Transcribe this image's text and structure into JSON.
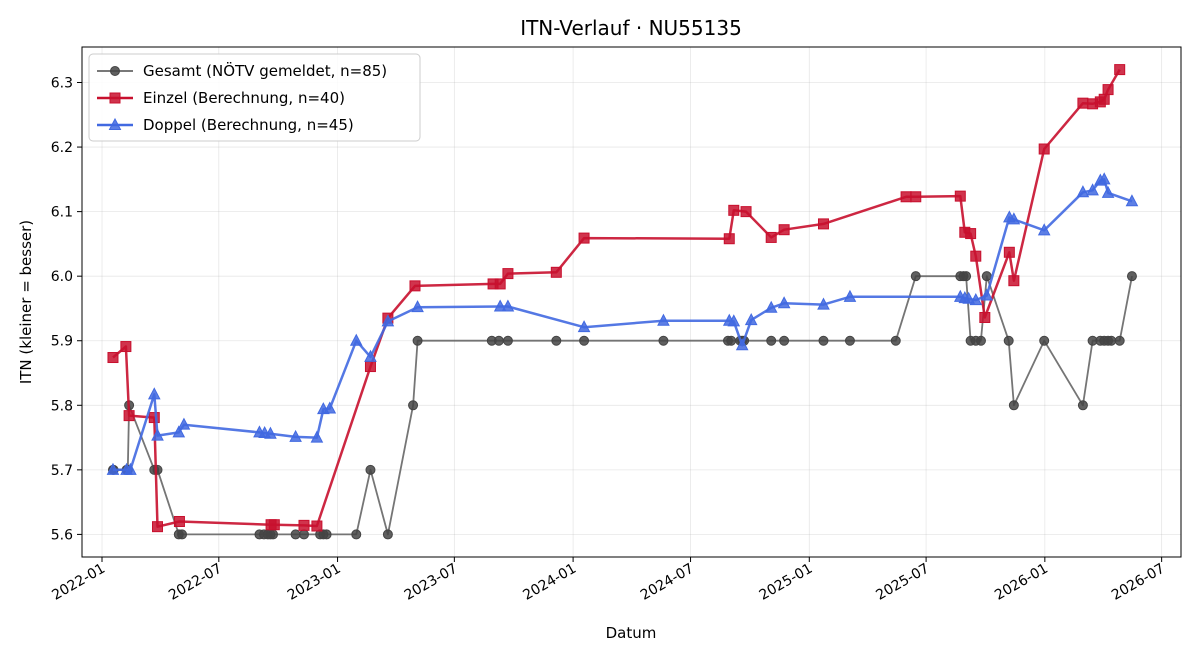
{
  "chart_data": {
    "type": "line",
    "title": "ITN-Verlauf · NU55135",
    "xlabel": "Datum",
    "ylabel": "ITN  (kleiner = besser)",
    "xlim": [
      "2021-12-01",
      "2026-07-31"
    ],
    "ylim": [
      5.565,
      6.355
    ],
    "x_ticks": [
      "2022-01",
      "2022-07",
      "2023-01",
      "2023-07",
      "2024-01",
      "2024-07",
      "2025-01",
      "2025-07",
      "2026-01",
      "2026-07"
    ],
    "y_ticks": [
      5.6,
      5.7,
      5.8,
      5.9,
      6.0,
      6.1,
      6.2,
      6.3
    ],
    "grid": true,
    "legend_position": "top-left",
    "series": [
      {
        "name": "Gesamt (NÖTV gemeldet, n=85)",
        "color": "#666666",
        "marker": "circle",
        "points": [
          [
            "2022-01-18",
            5.7
          ],
          [
            "2022-01-19",
            5.7
          ],
          [
            "2022-02-08",
            5.7
          ],
          [
            "2022-02-10",
            5.7
          ],
          [
            "2022-02-12",
            5.8
          ],
          [
            "2022-03-23",
            5.7
          ],
          [
            "2022-03-28",
            5.7
          ],
          [
            "2022-04-30",
            5.6
          ],
          [
            "2022-05-05",
            5.6
          ],
          [
            "2022-09-02",
            5.6
          ],
          [
            "2022-09-09",
            5.6
          ],
          [
            "2022-09-15",
            5.6
          ],
          [
            "2022-09-19",
            5.6
          ],
          [
            "2022-09-23",
            5.6
          ],
          [
            "2022-10-28",
            5.6
          ],
          [
            "2022-11-10",
            5.6
          ],
          [
            "2022-12-05",
            5.6
          ],
          [
            "2022-12-10",
            5.6
          ],
          [
            "2022-12-15",
            5.6
          ],
          [
            "2023-01-30",
            5.6
          ],
          [
            "2023-02-21",
            5.7
          ],
          [
            "2023-03-20",
            5.6
          ],
          [
            "2023-04-28",
            5.8
          ],
          [
            "2023-05-05",
            5.9
          ],
          [
            "2023-08-28",
            5.9
          ],
          [
            "2023-09-08",
            5.9
          ],
          [
            "2023-09-22",
            5.9
          ],
          [
            "2023-12-06",
            5.9
          ],
          [
            "2024-01-18",
            5.9
          ],
          [
            "2024-05-20",
            5.9
          ],
          [
            "2024-08-28",
            5.9
          ],
          [
            "2024-09-02",
            5.9
          ],
          [
            "2024-09-16",
            5.9
          ],
          [
            "2024-09-19",
            5.9
          ],
          [
            "2024-09-22",
            5.9
          ],
          [
            "2024-11-03",
            5.9
          ],
          [
            "2024-11-23",
            5.9
          ],
          [
            "2025-01-23",
            5.9
          ],
          [
            "2025-03-05",
            5.9
          ],
          [
            "2025-05-15",
            5.9
          ],
          [
            "2025-06-15",
            6.0
          ],
          [
            "2025-08-23",
            6.0
          ],
          [
            "2025-08-28",
            6.0
          ],
          [
            "2025-09-01",
            6.0
          ],
          [
            "2025-09-08",
            5.9
          ],
          [
            "2025-09-16",
            5.9
          ],
          [
            "2025-09-24",
            5.9
          ],
          [
            "2025-10-03",
            6.0
          ],
          [
            "2025-11-06",
            5.9
          ],
          [
            "2025-11-14",
            5.8
          ],
          [
            "2025-12-31",
            5.9
          ],
          [
            "2026-03-01",
            5.8
          ],
          [
            "2026-03-16",
            5.9
          ],
          [
            "2026-03-28",
            5.9
          ],
          [
            "2026-04-03",
            5.9
          ],
          [
            "2026-04-09",
            5.9
          ],
          [
            "2026-04-14",
            5.9
          ],
          [
            "2026-04-27",
            5.9
          ],
          [
            "2026-05-16",
            6.0
          ]
        ]
      },
      {
        "name": "Einzel (Berechnung, n=40)",
        "color": "#c8102e",
        "marker": "square",
        "points": [
          [
            "2022-01-18",
            5.874
          ],
          [
            "2022-02-07",
            5.891
          ],
          [
            "2022-02-12",
            5.784
          ],
          [
            "2022-03-23",
            5.781
          ],
          [
            "2022-03-28",
            5.612
          ],
          [
            "2022-05-01",
            5.62
          ],
          [
            "2022-09-20",
            5.615
          ],
          [
            "2022-09-25",
            5.615
          ],
          [
            "2022-11-10",
            5.614
          ],
          [
            "2022-11-30",
            5.613
          ],
          [
            "2023-02-21",
            5.86
          ],
          [
            "2023-03-20",
            5.935
          ],
          [
            "2023-05-01",
            5.985
          ],
          [
            "2023-08-30",
            5.988
          ],
          [
            "2023-09-10",
            5.988
          ],
          [
            "2023-09-22",
            6.004
          ],
          [
            "2023-12-06",
            6.006
          ],
          [
            "2024-01-18",
            6.059
          ],
          [
            "2024-08-30",
            6.058
          ],
          [
            "2024-09-06",
            6.102
          ],
          [
            "2024-09-25",
            6.1
          ],
          [
            "2024-11-03",
            6.06
          ],
          [
            "2024-11-23",
            6.072
          ],
          [
            "2025-01-23",
            6.081
          ],
          [
            "2025-05-31",
            6.123
          ],
          [
            "2025-06-15",
            6.123
          ],
          [
            "2025-08-23",
            6.124
          ],
          [
            "2025-08-30",
            6.068
          ],
          [
            "2025-09-08",
            6.066
          ],
          [
            "2025-09-16",
            6.031
          ],
          [
            "2025-09-30",
            5.936
          ],
          [
            "2025-11-07",
            6.037
          ],
          [
            "2025-11-14",
            5.993
          ],
          [
            "2025-12-31",
            6.197
          ],
          [
            "2026-03-01",
            6.268
          ],
          [
            "2026-03-16",
            6.267
          ],
          [
            "2026-03-28",
            6.27
          ],
          [
            "2026-04-03",
            6.274
          ],
          [
            "2026-04-09",
            6.289
          ],
          [
            "2026-04-27",
            6.32
          ]
        ]
      },
      {
        "name": "Doppel (Berechnung, n=45)",
        "color": "#4169e1",
        "marker": "triangle",
        "points": [
          [
            "2022-01-18",
            5.7
          ],
          [
            "2022-02-08",
            5.7
          ],
          [
            "2022-02-14",
            5.7
          ],
          [
            "2022-03-23",
            5.817
          ],
          [
            "2022-03-28",
            5.753
          ],
          [
            "2022-04-30",
            5.758
          ],
          [
            "2022-05-08",
            5.77
          ],
          [
            "2022-09-02",
            5.758
          ],
          [
            "2022-09-10",
            5.757
          ],
          [
            "2022-09-19",
            5.756
          ],
          [
            "2022-10-28",
            5.751
          ],
          [
            "2022-11-30",
            5.75
          ],
          [
            "2022-12-10",
            5.794
          ],
          [
            "2022-12-20",
            5.795
          ],
          [
            "2023-01-30",
            5.9
          ],
          [
            "2023-02-21",
            5.875
          ],
          [
            "2023-03-20",
            5.93
          ],
          [
            "2023-05-05",
            5.952
          ],
          [
            "2023-09-10",
            5.953
          ],
          [
            "2023-09-22",
            5.953
          ],
          [
            "2024-01-18",
            5.921
          ],
          [
            "2024-05-20",
            5.931
          ],
          [
            "2024-08-30",
            5.931
          ],
          [
            "2024-09-06",
            5.93
          ],
          [
            "2024-09-19",
            5.893
          ],
          [
            "2024-10-03",
            5.932
          ],
          [
            "2024-11-03",
            5.951
          ],
          [
            "2024-11-23",
            5.958
          ],
          [
            "2025-01-23",
            5.956
          ],
          [
            "2025-03-05",
            5.968
          ],
          [
            "2025-08-23",
            5.968
          ],
          [
            "2025-08-30",
            5.966
          ],
          [
            "2025-09-05",
            5.965
          ],
          [
            "2025-09-16",
            5.963
          ],
          [
            "2025-10-03",
            5.97
          ],
          [
            "2025-11-07",
            6.091
          ],
          [
            "2025-11-14",
            6.088
          ],
          [
            "2025-12-31",
            6.071
          ],
          [
            "2026-03-01",
            6.13
          ],
          [
            "2026-03-16",
            6.133
          ],
          [
            "2026-03-28",
            6.148
          ],
          [
            "2026-04-03",
            6.15
          ],
          [
            "2026-04-09",
            6.129
          ],
          [
            "2026-05-16",
            6.116
          ]
        ]
      }
    ]
  }
}
